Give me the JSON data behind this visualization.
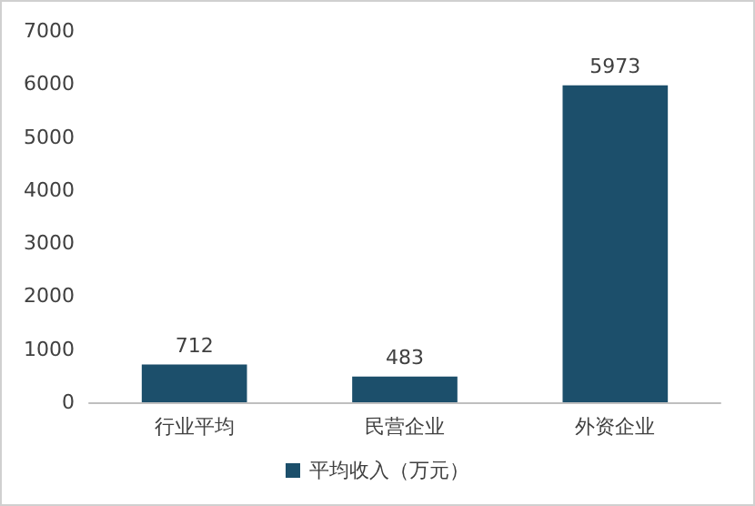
{
  "chart_data": {
    "type": "bar",
    "categories": [
      "行业平均",
      "民营企业",
      "外资企业"
    ],
    "series": [
      {
        "name": "平均收入（万元）",
        "color": "#1c4f6b",
        "values": [
          712,
          483,
          5973
        ]
      }
    ],
    "ylim": [
      0,
      7000
    ],
    "yticks": [
      0,
      1000,
      2000,
      3000,
      4000,
      5000,
      6000,
      7000
    ],
    "grid": false,
    "legend": "bottom",
    "data_labels": true
  }
}
